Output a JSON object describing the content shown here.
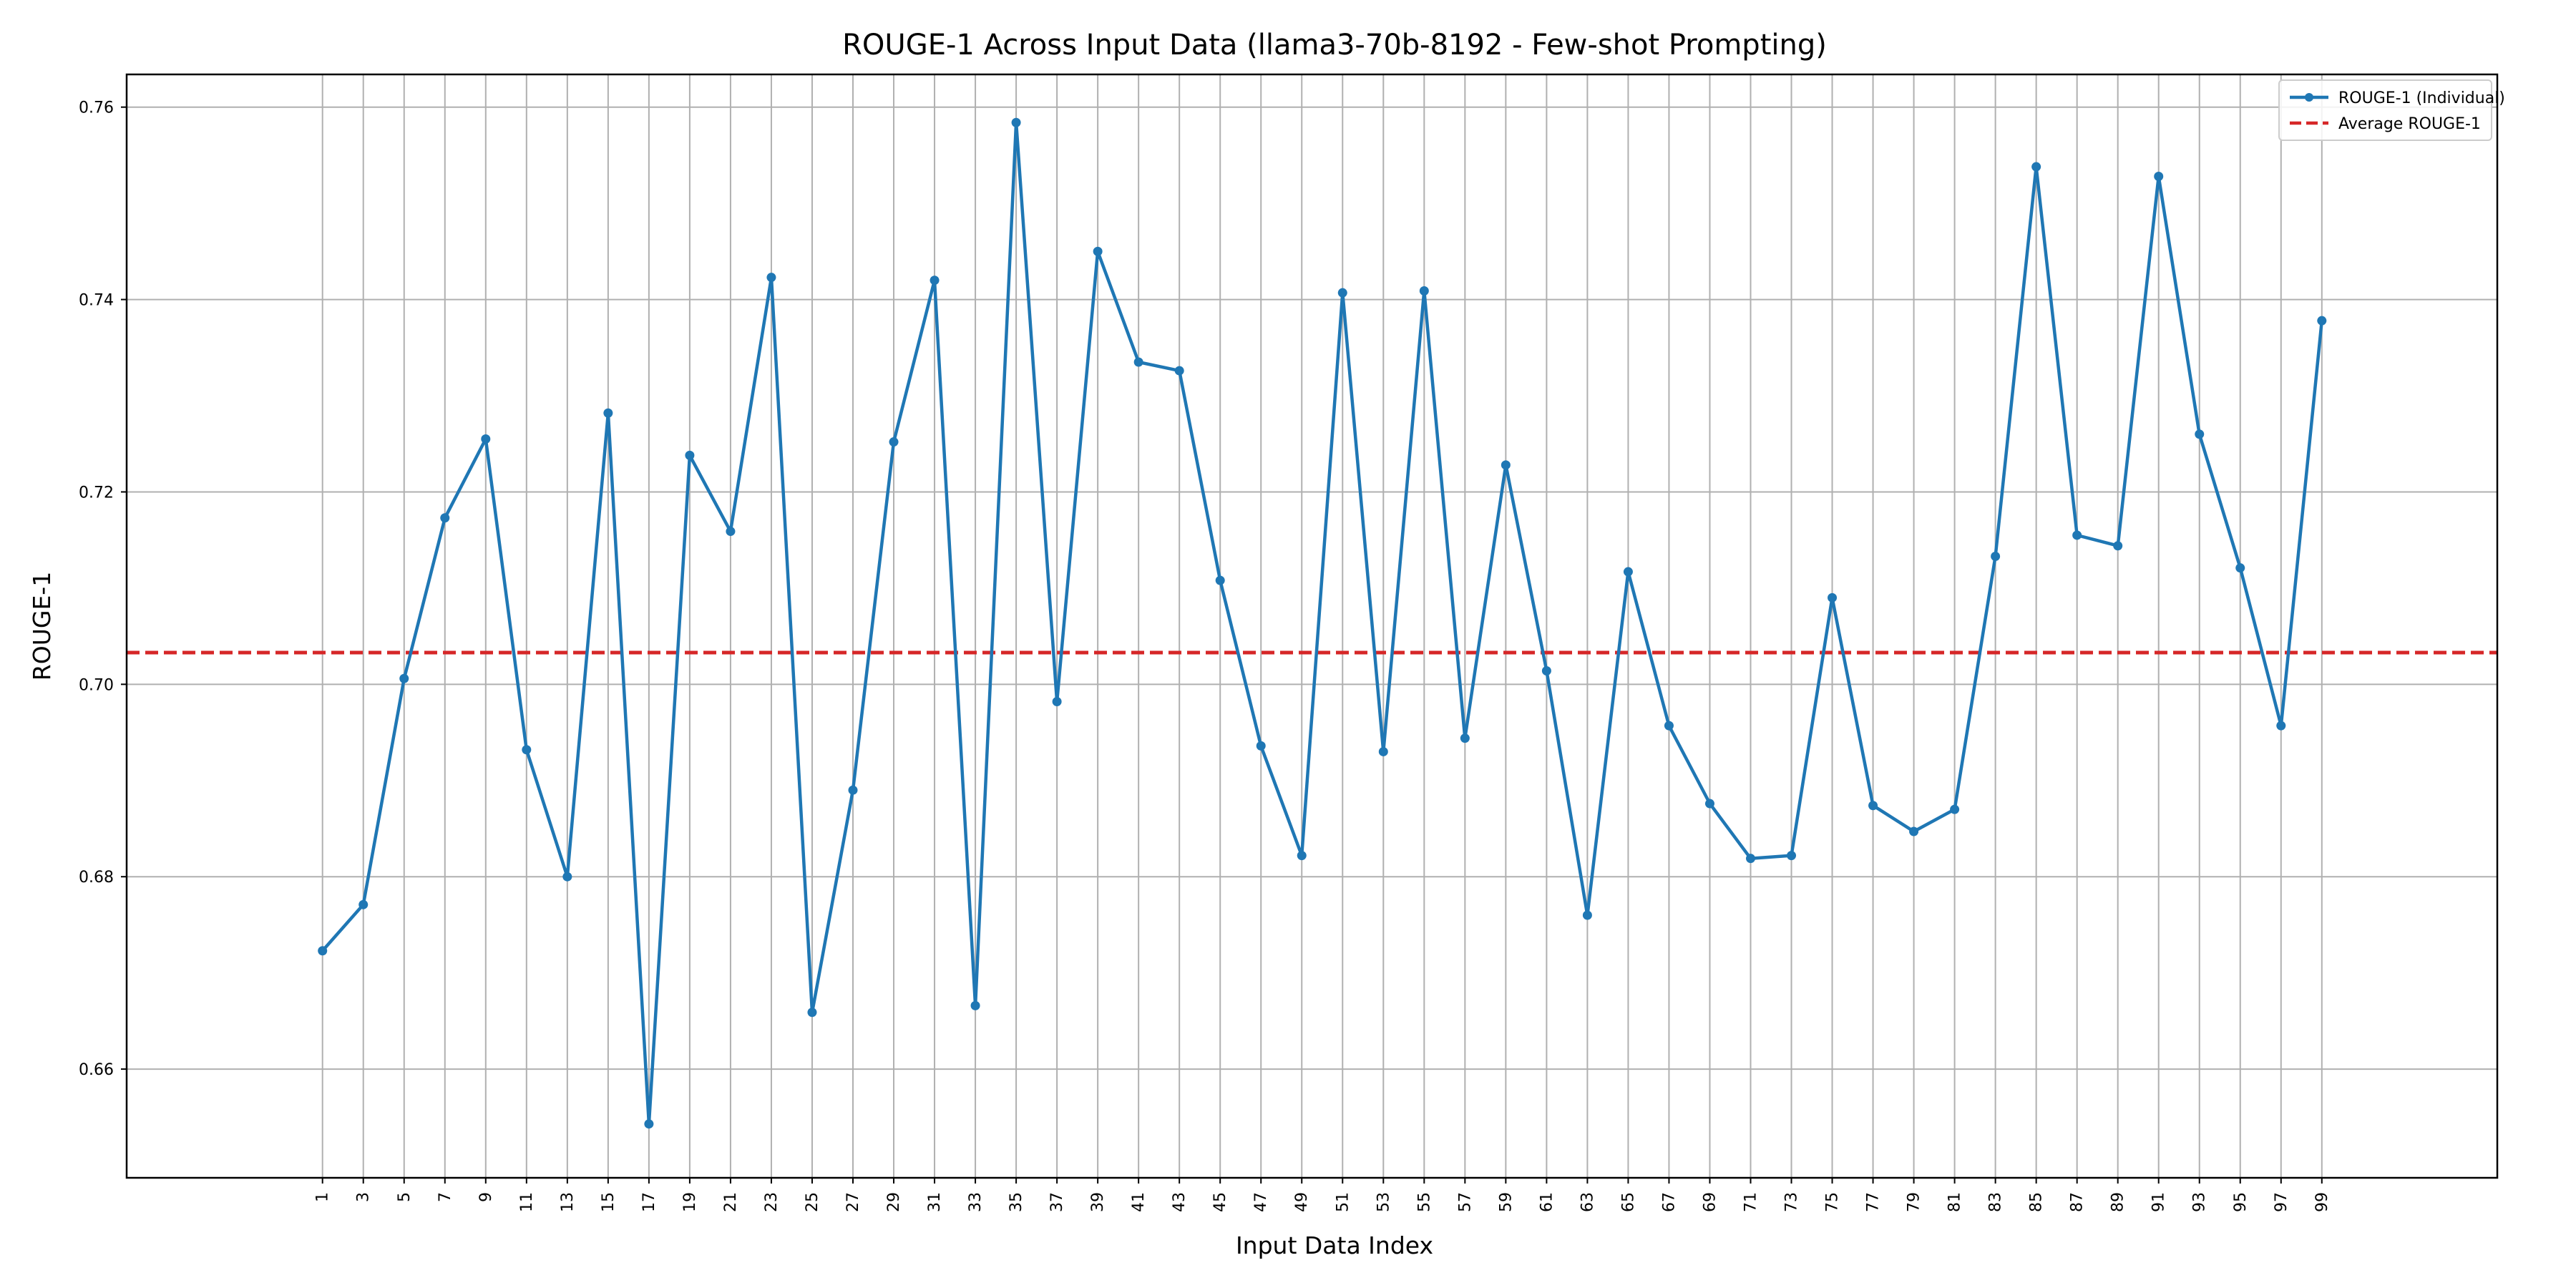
{
  "chart_data": {
    "type": "line",
    "title": "ROUGE-1 Across Input Data (llama3-70b-8192 - Few-shot Prompting)",
    "xlabel": "Input Data Index",
    "ylabel": "ROUGE-1",
    "x": [
      1,
      3,
      5,
      7,
      9,
      11,
      13,
      15,
      17,
      19,
      21,
      23,
      25,
      27,
      29,
      31,
      33,
      35,
      37,
      39,
      41,
      43,
      45,
      47,
      49,
      51,
      53,
      55,
      57,
      59,
      61,
      63,
      65,
      67,
      69,
      71,
      73,
      75,
      77,
      79,
      81,
      83,
      85,
      87,
      89,
      91,
      93,
      95,
      97,
      99
    ],
    "x_ticks": [
      "1",
      "3",
      "5",
      "7",
      "9",
      "11",
      "13",
      "15",
      "17",
      "19",
      "21",
      "23",
      "25",
      "27",
      "29",
      "31",
      "33",
      "35",
      "37",
      "39",
      "41",
      "43",
      "45",
      "47",
      "49",
      "51",
      "53",
      "55",
      "57",
      "59",
      "61",
      "63",
      "65",
      "67",
      "69",
      "71",
      "73",
      "75",
      "77",
      "79",
      "81",
      "83",
      "85",
      "87",
      "89",
      "91",
      "93",
      "95",
      "97",
      "99"
    ],
    "xlim": [
      -8.6,
      107.6
    ],
    "y_ticks": [
      "0.66",
      "0.68",
      "0.70",
      "0.72",
      "0.74",
      "0.76"
    ],
    "y_tick_values": [
      0.66,
      0.68,
      0.7,
      0.72,
      0.74,
      0.76
    ],
    "ylim": [
      0.6487,
      0.7634
    ],
    "grid": true,
    "legend_position": "upper-right",
    "series": [
      {
        "name": "ROUGE-1 (Individual)",
        "kind": "line-with-markers",
        "color": "#1f77b4",
        "values": [
          0.6723,
          0.6771,
          0.7006,
          0.7173,
          0.7255,
          0.6932,
          0.68,
          0.7282,
          0.6543,
          0.7238,
          0.7159,
          0.7423,
          0.6659,
          0.689,
          0.7252,
          0.742,
          0.6666,
          0.7584,
          0.6982,
          0.745,
          0.7335,
          0.7326,
          0.7108,
          0.6936,
          0.6822,
          0.7407,
          0.693,
          0.7409,
          0.6944,
          0.7228,
          0.7014,
          0.676,
          0.7117,
          0.6957,
          0.6876,
          0.6819,
          0.6822,
          0.709,
          0.6874,
          0.6847,
          0.687,
          0.7133,
          0.7538,
          0.7155,
          0.7144,
          0.7528,
          0.726,
          0.7121,
          0.6957,
          0.7378
        ]
      },
      {
        "name": "Average ROUGE-1",
        "kind": "horizontal-dashed-line",
        "color": "#d62728",
        "value": 0.7033
      }
    ]
  }
}
